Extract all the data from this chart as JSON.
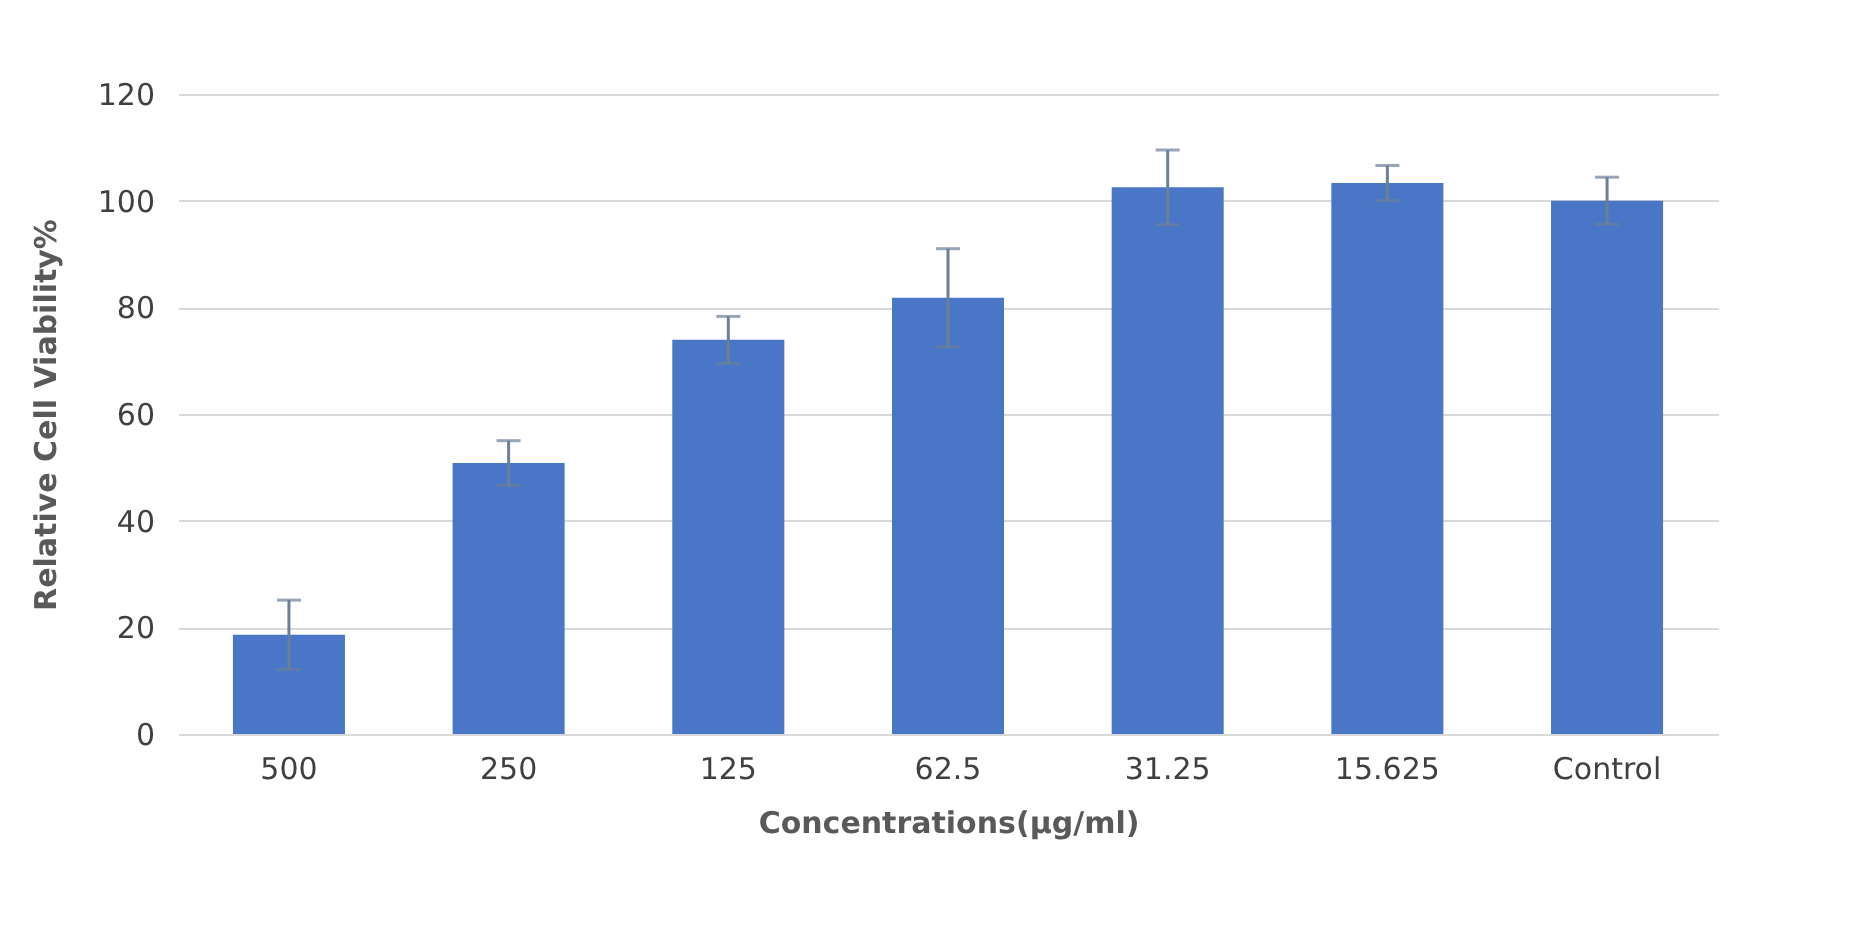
{
  "chart_data": {
    "type": "bar",
    "categories": [
      "500",
      "250",
      "125",
      "62.5",
      "31.25",
      "15.625",
      "Control"
    ],
    "values": [
      18.6,
      50.8,
      73.9,
      81.8,
      102.5,
      103.3,
      100
    ],
    "errors": [
      6.5,
      4.2,
      4.4,
      9.2,
      7,
      3.3,
      4.4
    ],
    "color": "#4a76c8",
    "xlabel": "Concentrations(µg/ml)",
    "ylabel": "Relative Cell Viability%",
    "ylim": [
      0,
      120
    ],
    "yticks": [
      0,
      20,
      40,
      60,
      80,
      100,
      120
    ],
    "grid": "y"
  }
}
